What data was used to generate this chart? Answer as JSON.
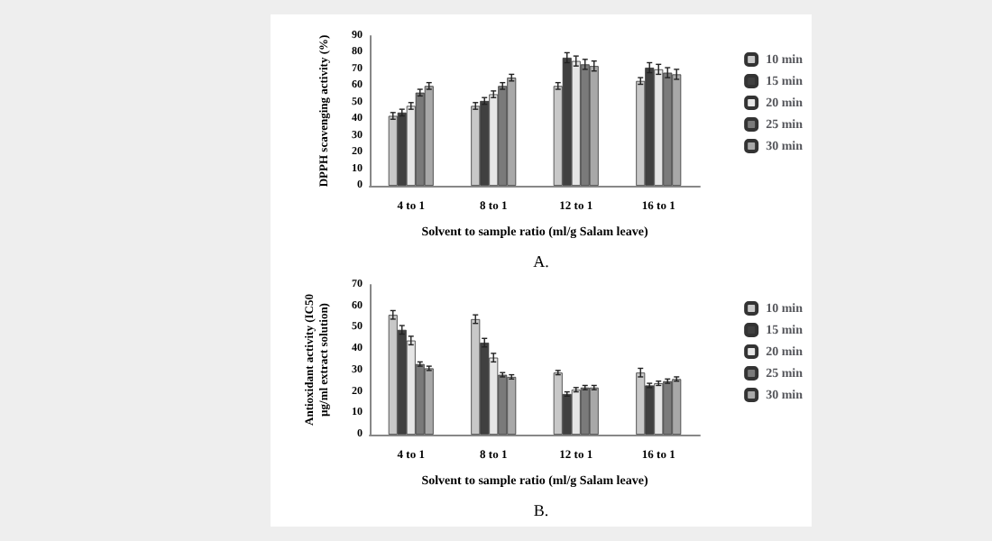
{
  "chart_data": [
    {
      "type": "bar",
      "categories": [
        "4 to 1",
        "8 to 1",
        "12 to 1",
        "16 to 1"
      ],
      "xlabel": "Solvent to sample ratio (ml/g Salam leave)",
      "ylabel": "DPPH scavenging activity (%)",
      "ylim": [
        0,
        90
      ],
      "yticks": [
        0,
        10,
        20,
        30,
        40,
        50,
        60,
        70,
        80,
        90
      ],
      "grid": false,
      "legend": "right",
      "annotations": [
        "A."
      ],
      "series": [
        {
          "name": "10 min",
          "color": "#c8c8c8",
          "values": [
            42,
            48,
            60,
            63
          ],
          "errors": [
            2,
            2,
            2,
            2
          ]
        },
        {
          "name": "15 min",
          "color": "#404040",
          "values": [
            44,
            51,
            77,
            71
          ],
          "errors": [
            2,
            2,
            3,
            3
          ]
        },
        {
          "name": "20 min",
          "color": "#e6e6e6",
          "values": [
            48,
            55,
            75,
            70
          ],
          "errors": [
            2,
            2,
            3,
            3
          ]
        },
        {
          "name": "25 min",
          "color": "#7a7a7a",
          "values": [
            56,
            60,
            73,
            68
          ],
          "errors": [
            2,
            2,
            3,
            3
          ]
        },
        {
          "name": "30 min",
          "color": "#a8a8a8",
          "values": [
            60,
            65,
            72,
            67
          ],
          "errors": [
            2,
            2,
            3,
            3
          ]
        }
      ]
    },
    {
      "type": "bar",
      "categories": [
        "4 to 1",
        "8 to 1",
        "12 to 1",
        "16 to 1"
      ],
      "xlabel": "Solvent to sample ratio (ml/g Salam leave)",
      "ylabel": "Antioxidant activity (IC50 µg/ml extract solution)",
      "ylim": [
        0,
        70
      ],
      "yticks": [
        0,
        10,
        20,
        30,
        40,
        50,
        60,
        70
      ],
      "grid": false,
      "legend": "right",
      "annotations": [
        "B."
      ],
      "series": [
        {
          "name": "10 min",
          "color": "#c8c8c8",
          "values": [
            56,
            54,
            29,
            29
          ],
          "errors": [
            2,
            2,
            1,
            2
          ]
        },
        {
          "name": "15 min",
          "color": "#404040",
          "values": [
            49,
            43,
            19,
            23
          ],
          "errors": [
            2,
            2,
            1,
            1
          ]
        },
        {
          "name": "20 min",
          "color": "#e6e6e6",
          "values": [
            44,
            36,
            21,
            24
          ],
          "errors": [
            2,
            2,
            1,
            1
          ]
        },
        {
          "name": "25 min",
          "color": "#7a7a7a",
          "values": [
            33,
            28,
            22,
            25
          ],
          "errors": [
            1,
            1,
            1,
            1
          ]
        },
        {
          "name": "30 min",
          "color": "#a8a8a8",
          "values": [
            31,
            27,
            22,
            26
          ],
          "errors": [
            1,
            1,
            1,
            1
          ]
        }
      ]
    }
  ]
}
